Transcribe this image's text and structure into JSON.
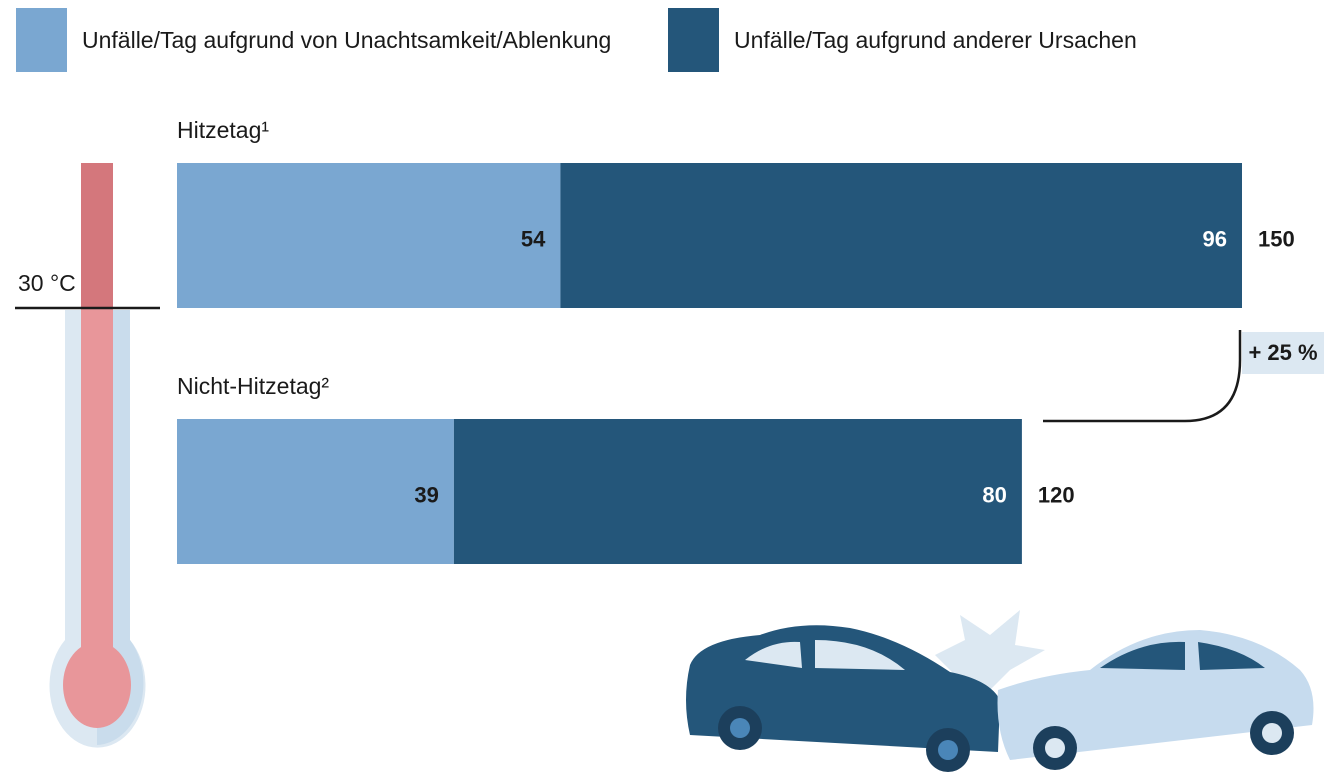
{
  "chart_data": {
    "type": "stacked-bar",
    "categories": [
      "Hitzetag¹",
      "Nicht-Hitzetag²"
    ],
    "series": [
      {
        "name": "Unfälle/Tag aufgrund von Unachtsamkeit/Ablenkung",
        "color": "#7aa7d1",
        "values": [
          54,
          39
        ]
      },
      {
        "name": "Unfälle/Tag aufgrund anderer Ursachen",
        "color": "#24567a",
        "values": [
          96,
          80
        ]
      }
    ],
    "totals": [
      150,
      120
    ],
    "annotation": "+ 25 %",
    "threshold_label": "30 °C"
  }
}
